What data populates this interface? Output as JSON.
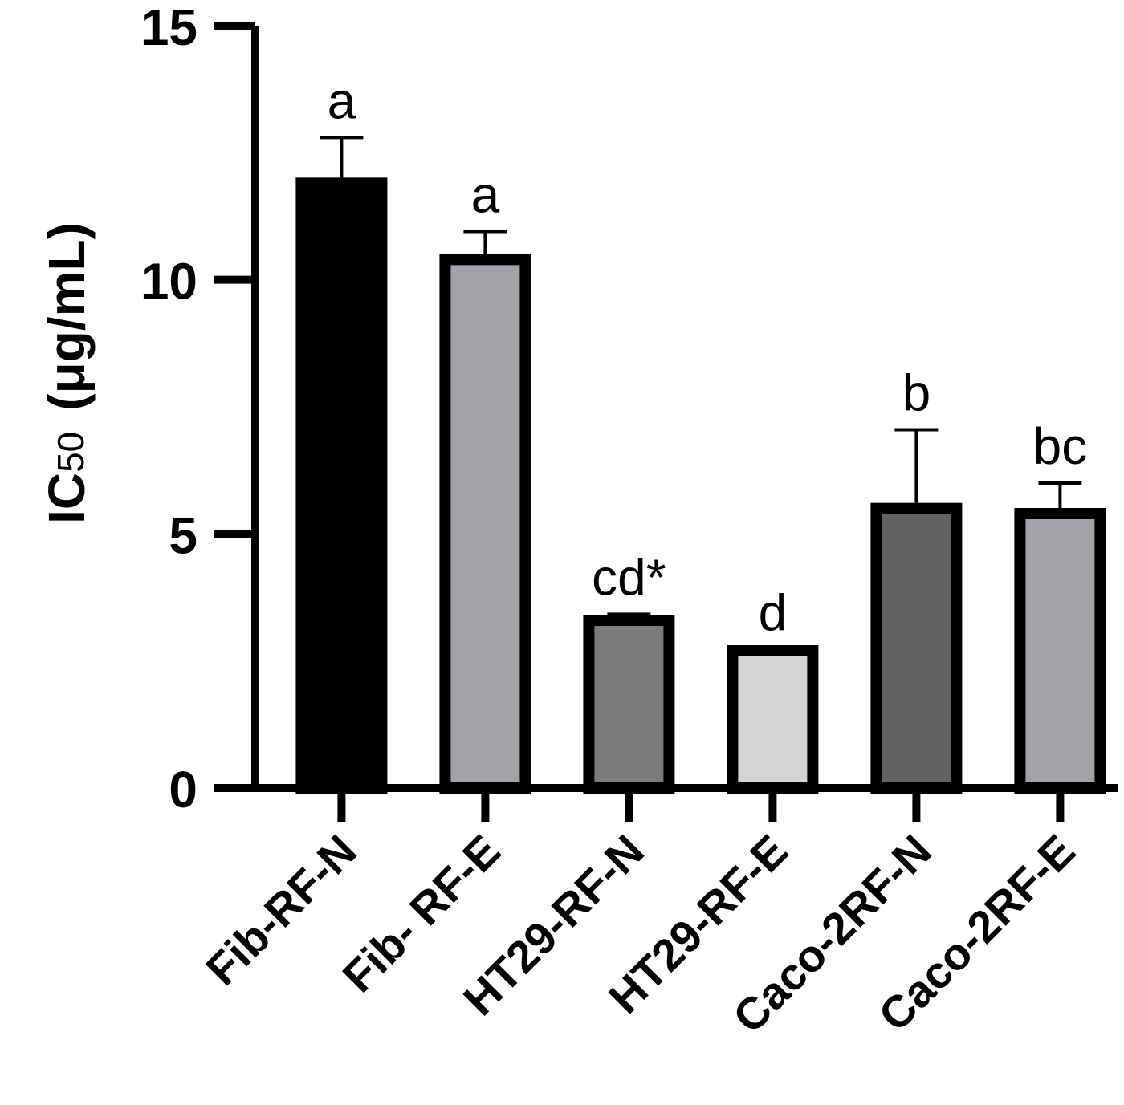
{
  "chart_data": {
    "type": "bar",
    "title": "",
    "xlabel": "",
    "ylabel": "IC50 (μg/mL)",
    "ylabel_parts": {
      "main": "IC",
      "subscript": "50",
      "unit": "(μg/mL)"
    },
    "ylim": [
      0,
      15
    ],
    "yticks": [
      0,
      5,
      10,
      15
    ],
    "ytick_labels": [
      "0",
      "5",
      "10",
      "15"
    ],
    "grid": false,
    "legend": "none",
    "categories": [
      "Fib-RF-N",
      "Fib- RF-E",
      "HT29-RF-N",
      "HT29-RF-E",
      "Caco-2RF-N",
      "Caco-2RF-E"
    ],
    "values": [
      11.9,
      10.4,
      3.3,
      2.7,
      5.5,
      5.4
    ],
    "errors": [
      0.9,
      0.55,
      0.12,
      0.02,
      1.55,
      0.6
    ],
    "significance_labels": [
      "a",
      "a",
      "cd*",
      "d",
      "b",
      "bc"
    ],
    "bar_fills": [
      "#000000",
      "#a3a3a7",
      "#7b7b7b",
      "#d4d4d4",
      "#636363",
      "#a3a3a7"
    ],
    "bar_edge_color": "#000000"
  }
}
